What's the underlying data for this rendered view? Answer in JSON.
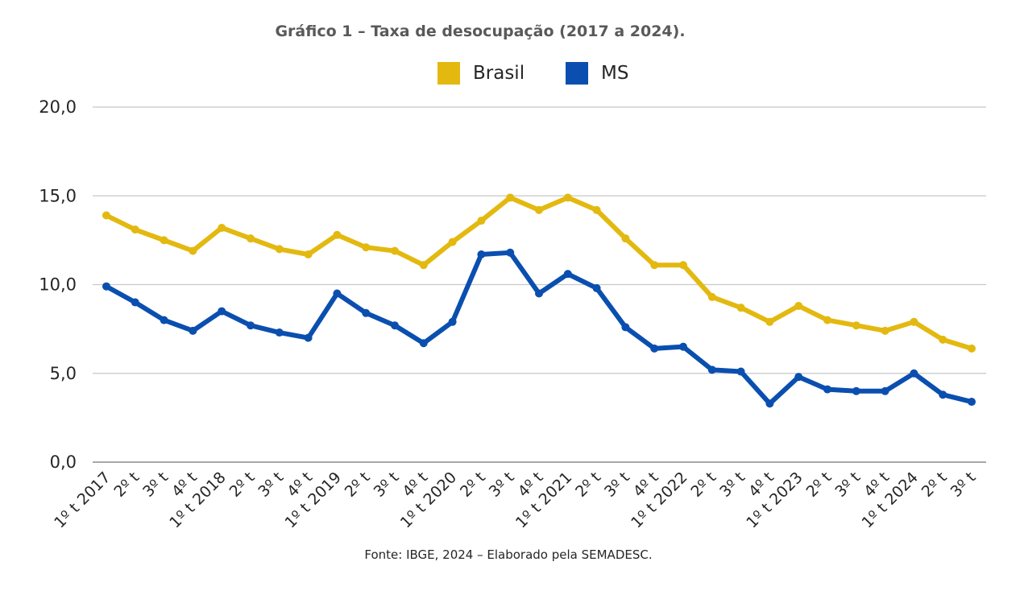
{
  "chart_data": {
    "type": "line",
    "title": "Gráfico 1 – Taxa de desocupação (2017 a 2024).",
    "source": "Fonte: IBGE, 2024 – Elaborado pela SEMADESC.",
    "xlabel": "",
    "ylabel": "",
    "ylim": [
      0,
      20
    ],
    "yticks": [
      "0,0",
      "5,0",
      "10,0",
      "15,0",
      "20,0"
    ],
    "ytick_values": [
      0,
      5,
      10,
      15,
      20
    ],
    "grid": true,
    "legend_position": "top-center",
    "categories": [
      "1º t 2017",
      "2º t",
      "3º t",
      "4º t",
      "1º t 2018",
      "2º t",
      "3º t",
      "4º t",
      "1º t 2019",
      "2º t",
      "3º t",
      "4º t",
      "1º t 2020",
      "2º t",
      "3º t",
      "4º t",
      "1º t 2021",
      "2º t",
      "3º t",
      "4º t",
      "1º t 2022",
      "2º t",
      "3º t",
      "4º t",
      "1º t 2023",
      "2º t",
      "3º t",
      "4º t",
      "1º t 2024",
      "2º t",
      "3º t"
    ],
    "series": [
      {
        "name": "Brasil",
        "color": "#e3b910",
        "values": [
          13.9,
          13.1,
          12.5,
          11.9,
          13.2,
          12.6,
          12.0,
          11.7,
          12.8,
          12.1,
          11.9,
          11.1,
          12.4,
          13.6,
          14.9,
          14.2,
          14.9,
          14.2,
          12.6,
          11.1,
          11.1,
          9.3,
          8.7,
          7.9,
          8.8,
          8.0,
          7.7,
          7.4,
          7.9,
          6.9,
          6.4
        ]
      },
      {
        "name": "MS",
        "color": "#0a4fb0",
        "values": [
          9.9,
          9.0,
          8.0,
          7.4,
          8.5,
          7.7,
          7.3,
          7.0,
          9.5,
          8.4,
          7.7,
          6.7,
          7.9,
          11.7,
          11.8,
          9.5,
          10.6,
          9.8,
          7.6,
          6.4,
          6.5,
          5.2,
          5.1,
          3.3,
          4.8,
          4.1,
          4.0,
          4.0,
          5.0,
          3.8,
          3.4
        ]
      }
    ]
  }
}
